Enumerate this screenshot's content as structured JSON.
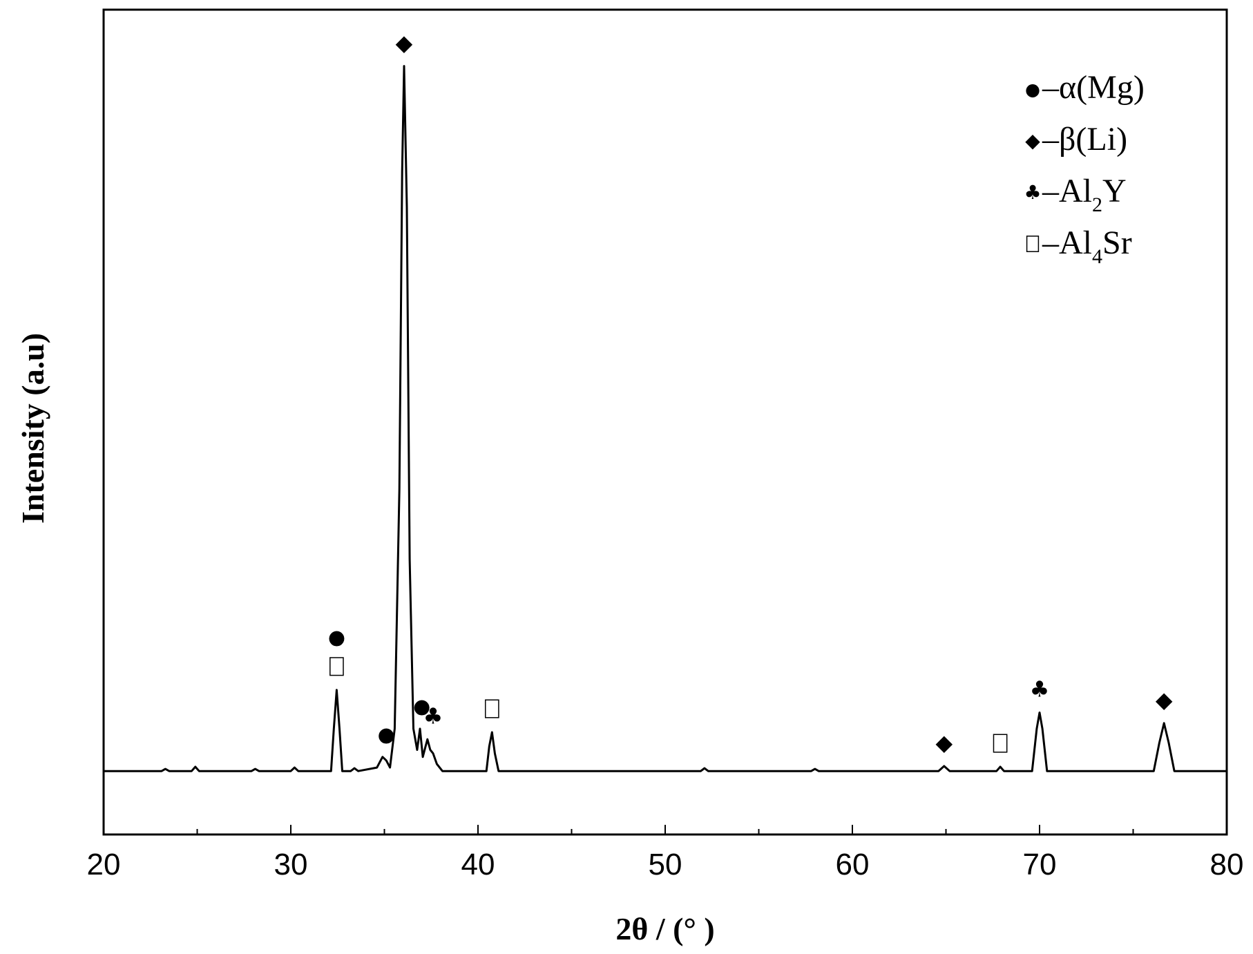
{
  "chart_data": {
    "type": "line",
    "title": "",
    "xlabel": "2θ / (°  )",
    "ylabel": "Intensity (a.u)",
    "xlim": [
      20,
      80
    ],
    "ylim": [
      -0.09,
      1.08
    ],
    "x_ticks": [
      "20",
      "30",
      "40",
      "50",
      "60",
      "70",
      "80"
    ],
    "x_tick_values": [
      20,
      30,
      40,
      50,
      60,
      70,
      80
    ],
    "grid": false,
    "legend_position": "top-right",
    "legend": [
      {
        "symbol": "●",
        "text": "–α(Mg)",
        "sub": "",
        "suffix": ""
      },
      {
        "symbol": "◆",
        "text": "–β(Li)",
        "sub": "",
        "suffix": ""
      },
      {
        "symbol": "♣",
        "text": "–Al",
        "sub": "2",
        "suffix": "Y"
      },
      {
        "symbol": "□",
        "text": "–Al",
        "sub": "4",
        "suffix": "Sr"
      }
    ],
    "series": [
      {
        "x": [
          20.0,
          23.1,
          23.3,
          23.5,
          24.7,
          24.9,
          25.1,
          27.9,
          28.1,
          28.3,
          30.0,
          30.2,
          30.4,
          32.15,
          32.3,
          32.45,
          32.6,
          32.75,
          33.2,
          33.4,
          33.6,
          34.6,
          34.9,
          35.1,
          35.3,
          35.55,
          35.8,
          35.95,
          36.05,
          36.2,
          36.35,
          36.55,
          36.75,
          36.9,
          37.05,
          37.2,
          37.3,
          37.45,
          37.6,
          37.8,
          38.1,
          40.45,
          40.6,
          40.75,
          40.9,
          41.1,
          51.9,
          52.1,
          52.3,
          57.8,
          58.0,
          58.2,
          64.6,
          64.9,
          65.2,
          67.7,
          67.9,
          68.1,
          69.6,
          69.85,
          70.0,
          70.15,
          70.4,
          76.1,
          76.4,
          76.65,
          76.9,
          77.2,
          80.0
        ],
        "y": [
          0.0,
          0.0,
          0.003,
          0.0,
          0.0,
          0.006,
          0.0,
          0.0,
          0.003,
          0.0,
          0.0,
          0.005,
          0.0,
          0.0,
          0.06,
          0.115,
          0.06,
          0.0,
          0.0,
          0.004,
          0.0,
          0.005,
          0.02,
          0.015,
          0.005,
          0.06,
          0.4,
          0.85,
          1.0,
          0.8,
          0.3,
          0.06,
          0.03,
          0.06,
          0.02,
          0.035,
          0.045,
          0.03,
          0.025,
          0.01,
          0.0,
          0.0,
          0.035,
          0.055,
          0.025,
          0.0,
          0.0,
          0.004,
          0.0,
          0.0,
          0.003,
          0.0,
          0.0,
          0.007,
          0.0,
          0.0,
          0.006,
          0.0,
          0.0,
          0.06,
          0.083,
          0.06,
          0.0,
          0.0,
          0.04,
          0.068,
          0.04,
          0.0,
          0.0
        ]
      }
    ],
    "peak_markers": [
      {
        "symbols": [
          "●",
          "□"
        ],
        "x": 32.45,
        "y": 0.115
      },
      {
        "symbols": [
          "●"
        ],
        "x": 35.1,
        "y": 0.02
      },
      {
        "symbols": [
          "◆"
        ],
        "x": 36.05,
        "y": 1.0
      },
      {
        "symbols": [
          "●"
        ],
        "x": 37.0,
        "y": 0.06
      },
      {
        "symbols": [
          "♣"
        ],
        "x": 37.6,
        "y": 0.045
      },
      {
        "symbols": [
          "□"
        ],
        "x": 40.75,
        "y": 0.055
      },
      {
        "symbols": [
          "◆"
        ],
        "x": 64.9,
        "y": 0.007
      },
      {
        "symbols": [
          "□"
        ],
        "x": 67.9,
        "y": 0.006
      },
      {
        "symbols": [
          "♣"
        ],
        "x": 70.0,
        "y": 0.083
      },
      {
        "symbols": [
          "◆"
        ],
        "x": 76.65,
        "y": 0.068
      }
    ]
  }
}
